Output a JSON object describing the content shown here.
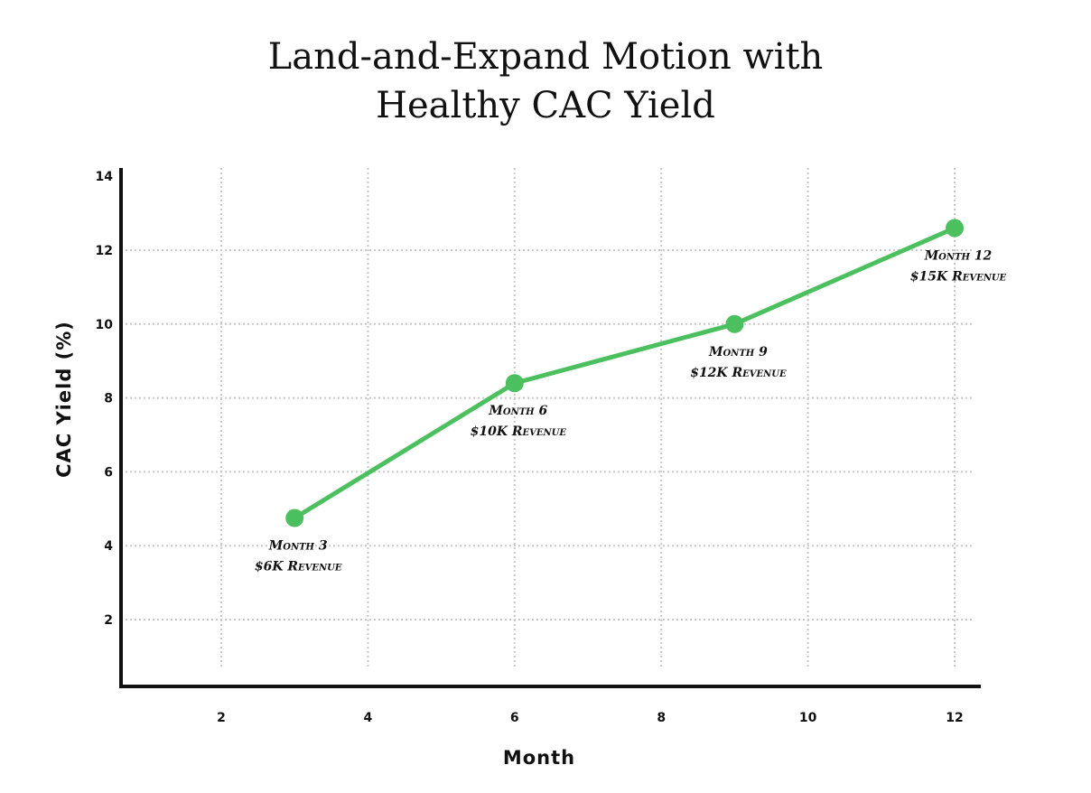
{
  "chart_data": {
    "type": "line",
    "title_lines": [
      "Land-and-Expand Motion with",
      "Healthy CAC Yield"
    ],
    "xlabel": "Month",
    "ylabel": "CAC Yield (%)",
    "x_ticks": [
      2,
      4,
      6,
      8,
      10,
      12
    ],
    "y_ticks": [
      2,
      4,
      6,
      8,
      10,
      12,
      14
    ],
    "xlim": [
      0.6,
      12.4
    ],
    "ylim": [
      0.1,
      14.3
    ],
    "grid": true,
    "line_color": "#4cc05e",
    "series": [
      {
        "points": [
          {
            "x": 3,
            "y": 4.75,
            "label_line1": "Month 3",
            "label_line2": "$6K Revenue"
          },
          {
            "x": 6,
            "y": 8.4,
            "label_line1": "Month 6",
            "label_line2": "$10K Revenue"
          },
          {
            "x": 9,
            "y": 10.0,
            "label_line1": "Month 9",
            "label_line2": "$12K Revenue"
          },
          {
            "x": 12,
            "y": 12.6,
            "label_line1": "Month 12",
            "label_line2": "$15K Revenue"
          }
        ]
      }
    ]
  }
}
